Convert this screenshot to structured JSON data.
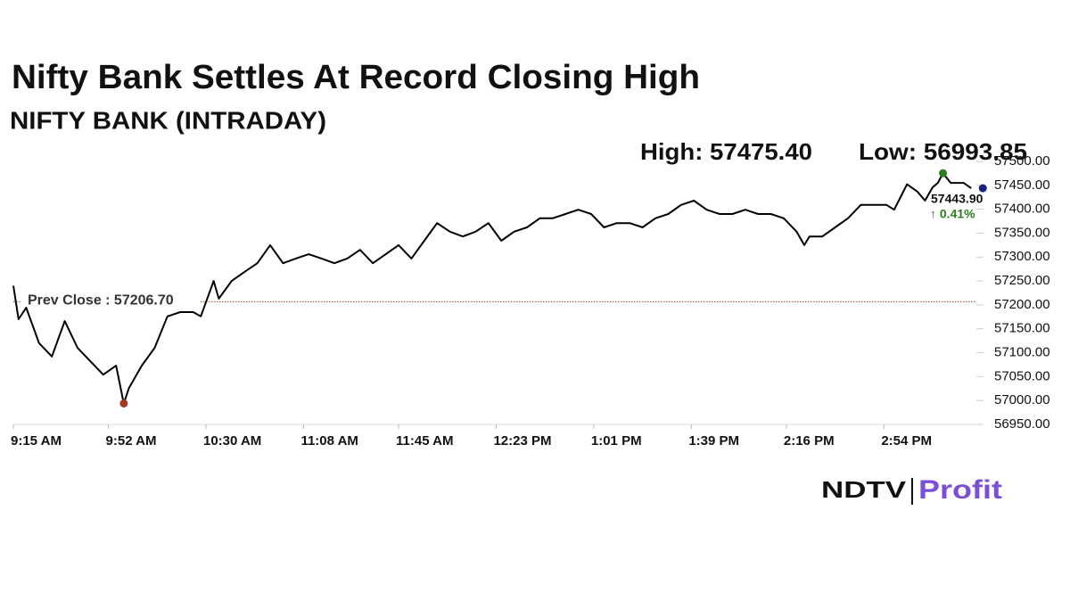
{
  "chart_data": {
    "type": "line",
    "title": "Nifty Bank Settles At Record Closing High",
    "subtitle": "NIFTY BANK (INTRADAY)",
    "high_label": "High: 57475.40",
    "low_label": "Low: 56993.85",
    "last_label": "57443.90",
    "change_label": "↑ 0.41%",
    "prev_close": {
      "value": 57206.7,
      "label": "Prev Close : 57206.70"
    },
    "logo": {
      "left": "NDTV",
      "right": "Profit"
    },
    "x": [
      "9:15 AM",
      "9:17 AM",
      "9:20 AM",
      "9:25 AM",
      "9:30 AM",
      "9:35 AM",
      "9:40 AM",
      "9:45 AM",
      "9:50 AM",
      "9:55 AM",
      "9:58 AM",
      "10:00 AM",
      "10:05 AM",
      "10:10 AM",
      "10:15 AM",
      "10:20 AM",
      "10:25 AM",
      "10:28 AM",
      "10:33 AM",
      "10:35 AM",
      "10:40 AM",
      "10:45 AM",
      "10:50 AM",
      "10:55 AM",
      "11:00 AM",
      "11:05 AM",
      "11:10 AM",
      "11:15 AM",
      "11:20 AM",
      "11:25 AM",
      "11:30 AM",
      "11:35 AM",
      "11:40 AM",
      "11:45 AM",
      "11:50 AM",
      "11:55 AM",
      "12:00 PM",
      "12:05 PM",
      "12:10 PM",
      "12:15 PM",
      "12:20 PM",
      "12:25 PM",
      "12:30 PM",
      "12:35 PM",
      "12:40 PM",
      "12:45 PM",
      "12:50 PM",
      "12:55 PM",
      "1:00 PM",
      "1:05 PM",
      "1:10 PM",
      "1:15 PM",
      "1:20 PM",
      "1:25 PM",
      "1:30 PM",
      "1:35 PM",
      "1:40 PM",
      "1:45 PM",
      "1:50 PM",
      "1:55 PM",
      "2:00 PM",
      "2:05 PM",
      "2:10 PM",
      "2:15 PM",
      "2:20 PM",
      "2:23 PM",
      "2:25 PM",
      "2:30 PM",
      "2:35 PM",
      "2:40 PM",
      "2:45 PM",
      "2:50 PM",
      "2:55 PM",
      "2:58 PM",
      "3:03 PM",
      "3:07 PM",
      "3:10 PM",
      "3:13 PM",
      "3:15 PM",
      "3:17 PM",
      "3:20 PM",
      "3:25 PM",
      "3:28 PM"
    ],
    "series": [
      {
        "name": "NIFTY BANK",
        "color": "#000000",
        "values": [
          57240,
          57170,
          57194,
          57120,
          57092,
          57166,
          57110,
          57082,
          57054,
          57073,
          56993.85,
          57026,
          57073,
          57110,
          57176,
          57185,
          57185,
          57176,
          57250,
          57213,
          57250,
          57269,
          57287,
          57325,
          57287,
          57297,
          57306,
          57297,
          57287,
          57297,
          57315,
          57287,
          57306,
          57325,
          57297,
          57334,
          57371,
          57353,
          57343,
          57353,
          57371,
          57334,
          57353,
          57362,
          57381,
          57381,
          57390,
          57399,
          57390,
          57362,
          57371,
          57371,
          57362,
          57381,
          57390,
          57409,
          57418,
          57399,
          57390,
          57390,
          57399,
          57390,
          57390,
          57381,
          57353,
          57325,
          57343,
          57343,
          57362,
          57381,
          57409,
          57409,
          57409,
          57399,
          57452,
          57437,
          57418,
          57446,
          57455,
          57475.4,
          57455,
          57455,
          57443.9
        ]
      }
    ],
    "xlim": [
      "9:15 AM",
      "3:30 PM"
    ],
    "xticks": [
      "9:15 AM",
      "9:52 AM",
      "10:30 AM",
      "11:08 AM",
      "11:45 AM",
      "12:23 PM",
      "1:01 PM",
      "1:39 PM",
      "2:16 PM",
      "2:54 PM"
    ],
    "ylim": [
      56950,
      57500
    ],
    "yticks": [
      {
        "value": 56950,
        "label": "56950.00"
      },
      {
        "value": 57000,
        "label": "57000.00"
      },
      {
        "value": 57050,
        "label": "57050.00"
      },
      {
        "value": 57100,
        "label": "57100.00"
      },
      {
        "value": 57150,
        "label": "57150.00"
      },
      {
        "value": 57200,
        "label": "57200.00"
      },
      {
        "value": 57250,
        "label": "57250.00"
      },
      {
        "value": 57300,
        "label": "57300.00"
      },
      {
        "value": 57350,
        "label": "57350.00"
      },
      {
        "value": 57400,
        "label": "57400.00"
      },
      {
        "value": 57450,
        "label": "57450.00"
      },
      {
        "value": 57500,
        "label": "57500.00"
      }
    ]
  }
}
